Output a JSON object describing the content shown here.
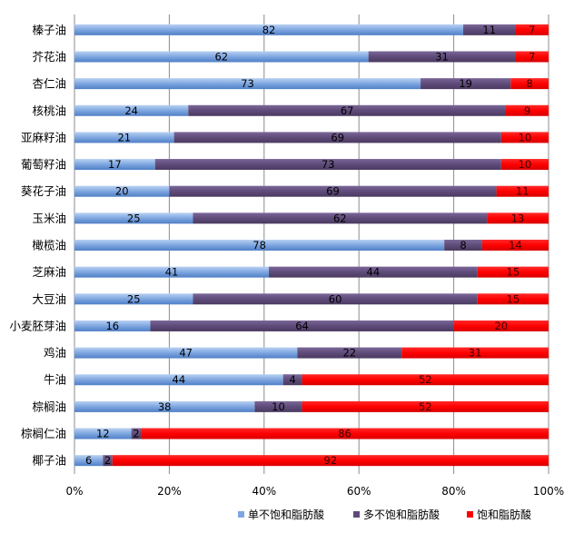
{
  "chart_data": {
    "type": "bar",
    "orientation": "horizontal",
    "stacked": "percent",
    "title": "",
    "xlabel": "",
    "ylabel": "",
    "xlim": [
      0,
      100
    ],
    "x_ticks": [
      "0%",
      "20%",
      "40%",
      "60%",
      "80%",
      "100%"
    ],
    "grid": "vertical",
    "legend_position": "bottom",
    "categories": [
      "榛子油",
      "芥花油",
      "杏仁油",
      "核桃油",
      "亚麻籽油",
      "葡萄籽油",
      "葵花子油",
      "玉米油",
      "橄榄油",
      "芝麻油",
      "大豆油",
      "小麦胚芽油",
      "鸡油",
      "牛油",
      "棕榈油",
      "棕榈仁油",
      "椰子油"
    ],
    "series": [
      {
        "name": "单不饱和脂肪酸",
        "color": "#7ea6e0",
        "values": [
          82,
          62,
          73,
          24,
          21,
          17,
          20,
          25,
          78,
          41,
          25,
          16,
          47,
          44,
          38,
          12,
          6
        ]
      },
      {
        "name": "多不饱和脂肪酸",
        "color": "#5f4b7a",
        "values": [
          11,
          31,
          19,
          67,
          69,
          73,
          69,
          62,
          8,
          44,
          60,
          64,
          22,
          4,
          10,
          2,
          2
        ]
      },
      {
        "name": "饱和脂肪酸",
        "color": "#ff0000",
        "values": [
          7,
          7,
          8,
          9,
          10,
          10,
          11,
          13,
          14,
          15,
          15,
          20,
          31,
          52,
          52,
          86,
          92
        ]
      }
    ]
  }
}
